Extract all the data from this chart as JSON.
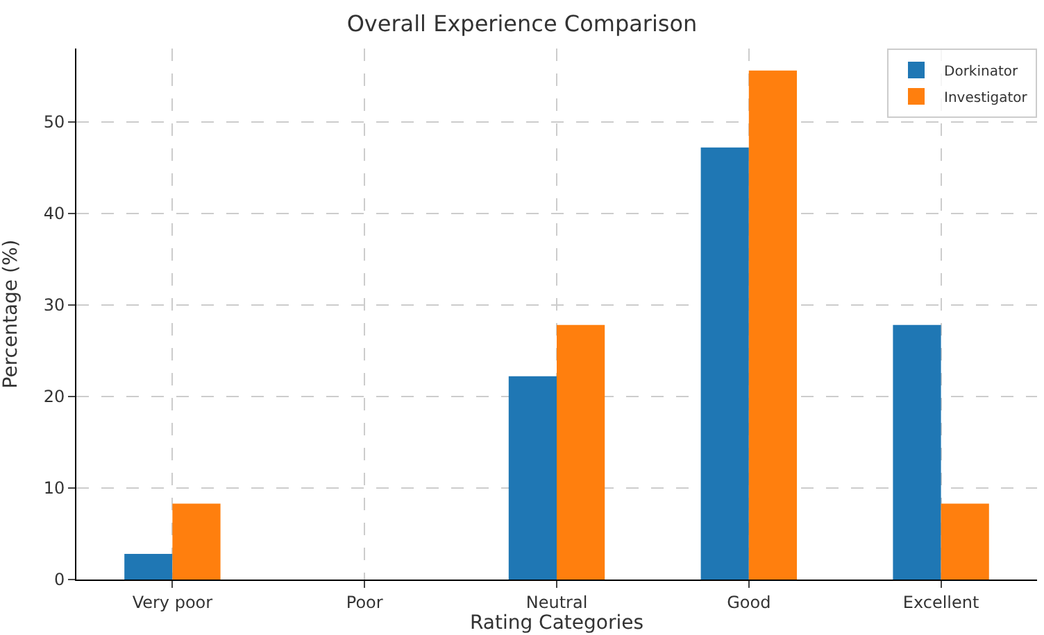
{
  "chart_data": {
    "type": "bar",
    "title": "Overall Experience Comparison",
    "xlabel": "Rating Categories",
    "ylabel": "Percentage (%)",
    "categories": [
      "Very poor",
      "Poor",
      "Neutral",
      "Good",
      "Excellent"
    ],
    "series": [
      {
        "name": "Dorkinator",
        "color": "#1f77b4",
        "values": [
          2.8,
          0,
          22.2,
          47.2,
          27.8
        ]
      },
      {
        "name": "Investigator",
        "color": "#ff7f0e",
        "values": [
          8.3,
          0,
          27.8,
          55.6,
          8.3
        ]
      }
    ],
    "ylim": [
      0,
      58
    ],
    "yticks": [
      0,
      10,
      20,
      30,
      40,
      50
    ],
    "grid": true,
    "legend": "top right"
  }
}
